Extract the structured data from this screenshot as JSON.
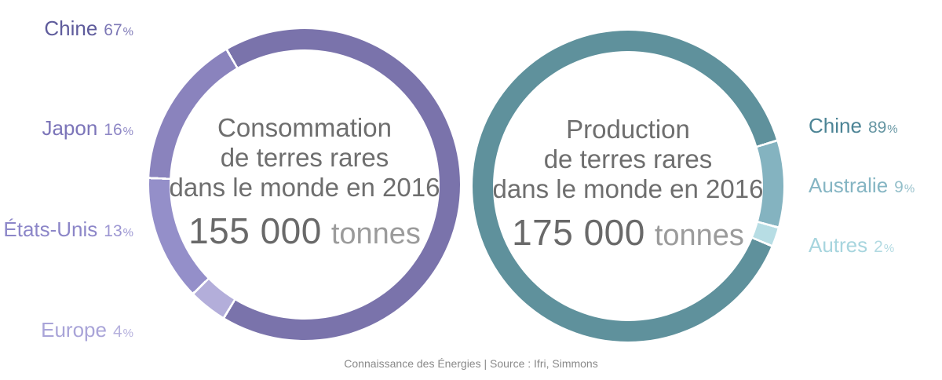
{
  "page": {
    "background": "#ffffff",
    "footer": "Connaissance des Énergies | Source : Ifri, Simmons"
  },
  "chart_data": [
    {
      "type": "pie",
      "style": "donut",
      "id": "consommation",
      "title_lines": [
        "Consommation",
        "de terres rares",
        "dans le monde en 2016"
      ],
      "total_value": "155 000",
      "total_unit": "tonnes",
      "legend_position": "left",
      "start_angle_deg": -30,
      "draw_order": [
        0,
        3,
        2,
        1
      ],
      "segments": [
        {
          "label": "Chine",
          "value": 67,
          "unit": "%",
          "color": "#7A73AB",
          "label_color": "#5F5C9C",
          "pct_color": "#7D78B6"
        },
        {
          "label": "Japon",
          "value": 16,
          "unit": "%",
          "color": "#8A83BD",
          "label_color": "#7C75B9",
          "pct_color": "#8F88C6"
        },
        {
          "label": "États-Unis",
          "value": 13,
          "unit": "%",
          "color": "#948FC9",
          "label_color": "#8C86C8",
          "pct_color": "#9C96D2"
        },
        {
          "label": "Europe",
          "value": 4,
          "unit": "%",
          "color": "#B3AEDA",
          "label_color": "#A9A4D8",
          "pct_color": "#B5B0DD"
        }
      ]
    },
    {
      "type": "pie",
      "style": "donut",
      "id": "production",
      "title_lines": [
        "Production",
        "de terres rares",
        "dans le monde en 2016"
      ],
      "total_value": "175 000",
      "total_unit": "tonnes",
      "legend_position": "right",
      "start_angle_deg": 73,
      "draw_order": [
        1,
        2,
        0
      ],
      "segments": [
        {
          "label": "Chine",
          "value": 89,
          "unit": "%",
          "color": "#5F919C",
          "label_color": "#4C8495",
          "pct_color": "#6595A2"
        },
        {
          "label": "Australie",
          "value": 9,
          "unit": "%",
          "color": "#84B3C0",
          "label_color": "#85B5C3",
          "pct_color": "#94BFCA"
        },
        {
          "label": "Autres",
          "value": 2,
          "unit": "%",
          "color": "#B7DDE4",
          "label_color": "#A7D5DE",
          "pct_color": "#B2DAE2"
        }
      ]
    }
  ]
}
